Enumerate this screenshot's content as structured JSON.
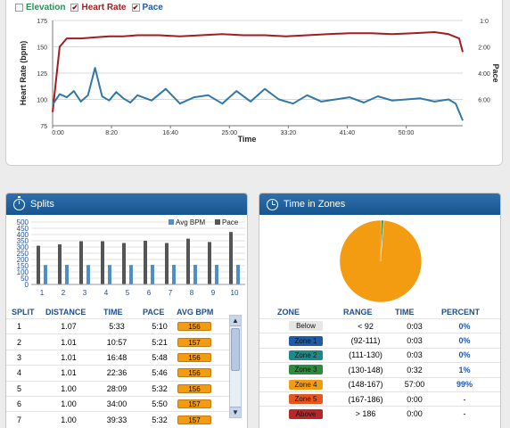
{
  "chart_toggles": [
    {
      "label": "Elevation",
      "checked": false,
      "color": "#2e8b57"
    },
    {
      "label": "Heart Rate",
      "checked": true,
      "color": "#a11d21"
    },
    {
      "label": "Pace",
      "checked": true,
      "color": "#1f5aa8"
    }
  ],
  "chart_data": {
    "type": "line",
    "xlabel": "Time",
    "ylabel_left": "Heart Rate (bpm)",
    "ylabel_right": "Pace",
    "x_ticks": [
      "0:00",
      "8:20",
      "16:40",
      "25:00",
      "33:20",
      "41:40",
      "50:00"
    ],
    "y_left_ticks": [
      75,
      100,
      125,
      150,
      175
    ],
    "y_right_ticks": [
      "6:00",
      "4:00",
      "2:00",
      "1:0"
    ],
    "series": [
      {
        "name": "Heart Rate",
        "color": "#a11d21",
        "x_minutes": [
          0,
          1,
          2,
          4,
          6,
          8,
          10,
          12,
          15,
          18,
          21,
          24,
          27,
          30,
          33,
          36,
          39,
          42,
          45,
          48,
          51,
          54,
          56,
          57.5,
          58
        ],
        "values": [
          88,
          150,
          158,
          158,
          159,
          160,
          160,
          161,
          161,
          160,
          161,
          162,
          161,
          161,
          160,
          161,
          162,
          163,
          163,
          162,
          163,
          164,
          162,
          158,
          145
        ]
      },
      {
        "name": "Pace",
        "color": "#2f78a8",
        "x_minutes": [
          0,
          1,
          2,
          3,
          4,
          5,
          6,
          7,
          8,
          9,
          10,
          11,
          12,
          14,
          16,
          18,
          20,
          22,
          24,
          26,
          28,
          30,
          32,
          34,
          36,
          38,
          40,
          42,
          44,
          46,
          48,
          50,
          52,
          54,
          56,
          57,
          58
        ],
        "values": [
          95,
          105,
          102,
          108,
          98,
          104,
          130,
          103,
          99,
          107,
          101,
          97,
          104,
          99,
          110,
          96,
          102,
          104,
          96,
          108,
          98,
          110,
          100,
          96,
          104,
          98,
          100,
          102,
          97,
          103,
          99,
          100,
          101,
          98,
          100,
          96,
          80
        ]
      }
    ],
    "xlim_minutes": [
      0,
      58
    ],
    "ylim": [
      75,
      175
    ]
  },
  "splits": {
    "title": "Splits",
    "chart_data": {
      "type": "bar",
      "categories": [
        "1",
        "2",
        "3",
        "4",
        "5",
        "6",
        "7",
        "8",
        "9",
        "10"
      ],
      "y_ticks": [
        0,
        50,
        100,
        150,
        200,
        250,
        300,
        350,
        400,
        450,
        500
      ],
      "legend": [
        "Avg BPM",
        "Pace"
      ],
      "series": [
        {
          "name": "Avg BPM",
          "color": "#4f8fc8",
          "values": [
            156,
            157,
            156,
            156,
            156,
            157,
            157,
            157,
            157,
            157
          ]
        },
        {
          "name": "Pace",
          "color": "#555555",
          "values": [
            310,
            321,
            346,
            346,
            332,
            350,
            332,
            367,
            340,
            420
          ]
        }
      ],
      "ylim": [
        0,
        500
      ]
    },
    "headers": [
      "SPLIT",
      "DISTANCE",
      "TIME",
      "PACE",
      "AVG BPM"
    ],
    "rows": [
      {
        "split": "1",
        "distance": "1.07",
        "time": "5:33",
        "pace": "5:10",
        "bpm": "156"
      },
      {
        "split": "2",
        "distance": "1.01",
        "time": "10:57",
        "pace": "5:21",
        "bpm": "157"
      },
      {
        "split": "3",
        "distance": "1.01",
        "time": "16:48",
        "pace": "5:48",
        "bpm": "156"
      },
      {
        "split": "4",
        "distance": "1.01",
        "time": "22:36",
        "pace": "5:46",
        "bpm": "156"
      },
      {
        "split": "5",
        "distance": "1.00",
        "time": "28:09",
        "pace": "5:32",
        "bpm": "156"
      },
      {
        "split": "6",
        "distance": "1.00",
        "time": "34:00",
        "pace": "5:50",
        "bpm": "157"
      },
      {
        "split": "7",
        "distance": "1.00",
        "time": "39:33",
        "pace": "5:32",
        "bpm": "157"
      }
    ]
  },
  "zones": {
    "title": "Time in Zones",
    "chart_data": {
      "type": "pie",
      "labels": [
        "Zone 3",
        "Zone 4"
      ],
      "values": [
        1,
        99
      ],
      "colors": [
        "#2e8b57",
        "#f39c12"
      ]
    },
    "headers": [
      "ZONE",
      "RANGE",
      "TIME",
      "PERCENT"
    ],
    "rows": [
      {
        "zone": "Below",
        "range": "< 92",
        "time": "0:03",
        "percent": "0%",
        "color": "#e6e6e6"
      },
      {
        "zone": "Zone 1",
        "range": "(92-111)",
        "time": "0:03",
        "percent": "0%",
        "color": "#1f5aa8"
      },
      {
        "zone": "Zone 2",
        "range": "(111-130)",
        "time": "0:03",
        "percent": "0%",
        "color": "#1d8a8a"
      },
      {
        "zone": "Zone 3",
        "range": "(130-148)",
        "time": "0:32",
        "percent": "1%",
        "color": "#2e8b3e"
      },
      {
        "zone": "Zone 4",
        "range": "(148-167)",
        "time": "57:00",
        "percent": "99%",
        "color": "#f39c12"
      },
      {
        "zone": "Zone 5",
        "range": "(167-186)",
        "time": "0:00",
        "percent": "-",
        "color": "#e8541e"
      },
      {
        "zone": "Above",
        "range": "> 186",
        "time": "0:00",
        "percent": "-",
        "color": "#b8262a"
      }
    ]
  }
}
